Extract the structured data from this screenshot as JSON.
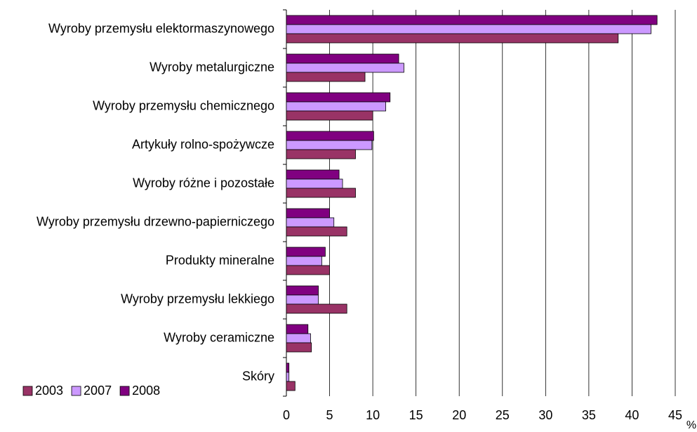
{
  "chart_data": {
    "type": "bar",
    "orientation": "horizontal",
    "categories": [
      "Wyroby przemysłu elektormaszynowego",
      "Wyroby metalurgiczne",
      "Wyroby przemysłu chemicznego",
      "Artykuły rolno-spożywcze",
      "Wyroby różne i pozostałe",
      "Wyroby przemysłu drzewno-papierniczego",
      "Produkty mineralne",
      "Wyroby przemysłu lekkiego",
      "Wyroby ceramiczne",
      "Skóry"
    ],
    "series": [
      {
        "name": "2003",
        "color": "#993366",
        "values": [
          38.4,
          9.1,
          10.0,
          8.0,
          8.0,
          7.0,
          5.0,
          7.0,
          2.9,
          1.0
        ]
      },
      {
        "name": "2007",
        "color": "#cc99ff",
        "values": [
          42.2,
          13.6,
          11.5,
          9.9,
          6.5,
          5.5,
          4.1,
          3.7,
          2.8,
          0.3
        ]
      },
      {
        "name": "2008",
        "color": "#800080",
        "values": [
          42.9,
          13.0,
          12.0,
          10.1,
          6.1,
          5.0,
          4.5,
          3.7,
          2.5,
          0.3
        ]
      }
    ],
    "xlim": [
      0,
      45
    ],
    "xticks": [
      0,
      5,
      10,
      15,
      20,
      25,
      30,
      35,
      40,
      45
    ],
    "x_label": "%",
    "grid": true,
    "legend": "bottom-left"
  }
}
